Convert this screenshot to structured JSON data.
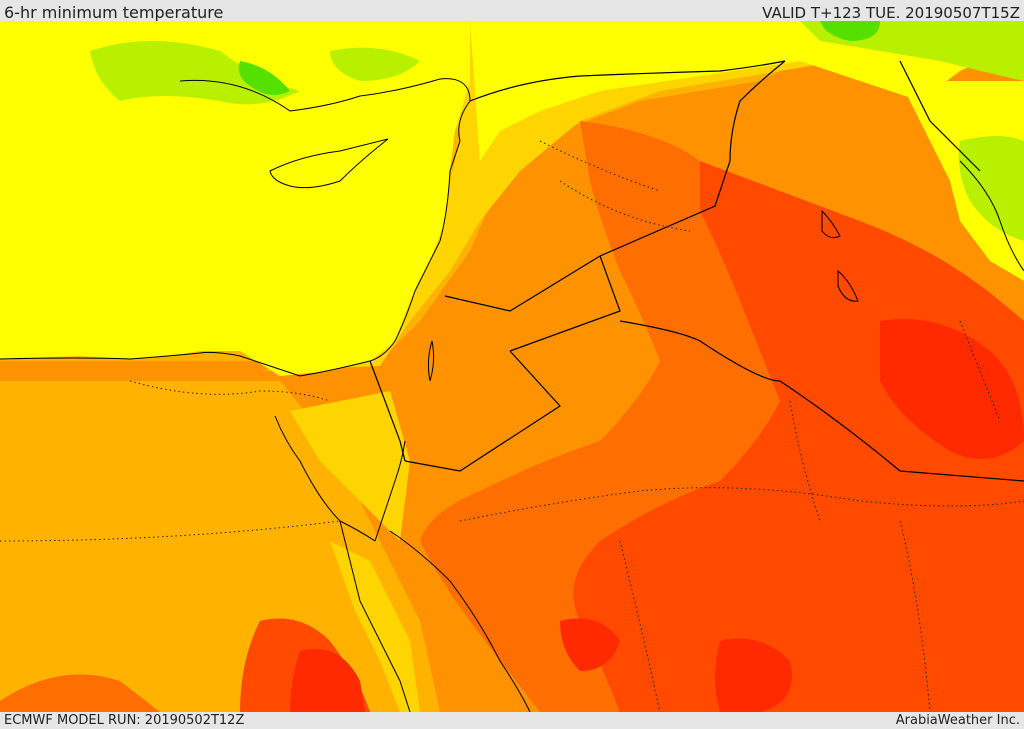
{
  "header": {
    "title": "6-hr minimum temperature",
    "valid": "VALID T+123 TUE. 20190507T15Z"
  },
  "footer": {
    "model_run": "ECMWF MODEL RUN: 20190502T12Z",
    "credit": "ArabiaWeather Inc."
  },
  "map": {
    "colors": {
      "green": "#55e000",
      "lime": "#b8f000",
      "yellow": "#ffff00",
      "gold": "#ffd500",
      "light_orange": "#ffb300",
      "orange": "#ff9200",
      "dark_orange": "#ff6e00",
      "red_orange": "#ff4a00",
      "red": "#ff2a00"
    }
  }
}
